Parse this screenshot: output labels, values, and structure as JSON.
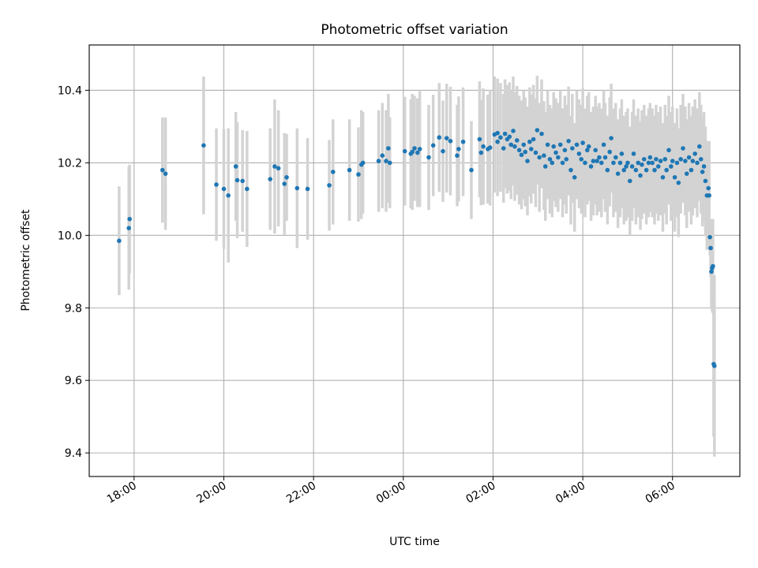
{
  "chart_data": {
    "type": "scatter",
    "title": "Photometric offset variation",
    "xlabel": "UTC time",
    "ylabel": "Photometric offset",
    "x_unit": "UTC time of night, 17:00 to 07:30 across midnight",
    "xlim": [
      "17:00",
      "07:30"
    ],
    "ylim": [
      9.335,
      10.525
    ],
    "x_ticks": [
      "18:00",
      "20:00",
      "22:00",
      "00:00",
      "02:00",
      "04:00",
      "06:00"
    ],
    "y_ticks": [
      "9.4",
      "9.6",
      "9.8",
      "10.0",
      "10.2",
      "10.4"
    ],
    "grid": true,
    "series": [
      {
        "errorbar_color": "#d3d3d3",
        "marker_color": "#1f77b4",
        "points": [
          {
            "t": "17:40",
            "y": 9.985,
            "err": 0.15
          },
          {
            "t": "17:53",
            "y": 10.02,
            "err": 0.17
          },
          {
            "t": "17:54",
            "y": 10.045,
            "err": 0.15
          },
          {
            "t": "18:38",
            "y": 10.18,
            "err": 0.145
          },
          {
            "t": "18:42",
            "y": 10.17,
            "err": 0.155
          },
          {
            "t": "19:33",
            "y": 10.248,
            "err": 0.19
          },
          {
            "t": "19:50",
            "y": 10.14,
            "err": 0.155
          },
          {
            "t": "20:00",
            "y": 10.128,
            "err": 0.165
          },
          {
            "t": "20:06",
            "y": 10.11,
            "err": 0.185
          },
          {
            "t": "20:16",
            "y": 10.19,
            "err": 0.15
          },
          {
            "t": "20:18",
            "y": 10.152,
            "err": 0.16
          },
          {
            "t": "20:25",
            "y": 10.15,
            "err": 0.14
          },
          {
            "t": "20:31",
            "y": 10.128,
            "err": 0.16
          },
          {
            "t": "21:02",
            "y": 10.155,
            "err": 0.14
          },
          {
            "t": "21:08",
            "y": 10.19,
            "err": 0.185
          },
          {
            "t": "21:13",
            "y": 10.185,
            "err": 0.16
          },
          {
            "t": "21:21",
            "y": 10.142,
            "err": 0.14
          },
          {
            "t": "21:24",
            "y": 10.16,
            "err": 0.12
          },
          {
            "t": "21:38",
            "y": 10.13,
            "err": 0.165
          },
          {
            "t": "21:52",
            "y": 10.128,
            "err": 0.14
          },
          {
            "t": "22:21",
            "y": 10.138,
            "err": 0.125
          },
          {
            "t": "22:26",
            "y": 10.175,
            "err": 0.145
          },
          {
            "t": "22:48",
            "y": 10.18,
            "err": 0.14
          },
          {
            "t": "23:00",
            "y": 10.168,
            "err": 0.13
          },
          {
            "t": "23:04",
            "y": 10.195,
            "err": 0.15
          },
          {
            "t": "23:06",
            "y": 10.2,
            "err": 0.14
          },
          {
            "t": "23:27",
            "y": 10.205,
            "err": 0.14
          },
          {
            "t": "23:32",
            "y": 10.22,
            "err": 0.145
          },
          {
            "t": "23:37",
            "y": 10.205,
            "err": 0.14
          },
          {
            "t": "23:40",
            "y": 10.24,
            "err": 0.15
          },
          {
            "t": "23:42",
            "y": 10.2,
            "err": 0.125
          },
          {
            "t": "00:02",
            "y": 10.232,
            "err": 0.15
          },
          {
            "t": "00:10",
            "y": 10.225,
            "err": 0.15
          },
          {
            "t": "00:12",
            "y": 10.23,
            "err": 0.16
          },
          {
            "t": "00:15",
            "y": 10.24,
            "err": 0.145
          },
          {
            "t": "00:19",
            "y": 10.228,
            "err": 0.15
          },
          {
            "t": "00:22",
            "y": 10.238,
            "err": 0.16
          },
          {
            "t": "00:34",
            "y": 10.215,
            "err": 0.145
          },
          {
            "t": "00:40",
            "y": 10.248,
            "err": 0.14
          },
          {
            "t": "00:48",
            "y": 10.27,
            "err": 0.15
          },
          {
            "t": "00:53",
            "y": 10.232,
            "err": 0.14
          },
          {
            "t": "00:58",
            "y": 10.268,
            "err": 0.15
          },
          {
            "t": "01:03",
            "y": 10.26,
            "err": 0.15
          },
          {
            "t": "01:12",
            "y": 10.22,
            "err": 0.14
          },
          {
            "t": "01:14",
            "y": 10.238,
            "err": 0.145
          },
          {
            "t": "01:20",
            "y": 10.258,
            "err": 0.15
          },
          {
            "t": "01:31",
            "y": 10.18,
            "err": 0.135
          },
          {
            "t": "01:42",
            "y": 10.265,
            "err": 0.16
          },
          {
            "t": "01:44",
            "y": 10.228,
            "err": 0.145
          },
          {
            "t": "01:47",
            "y": 10.245,
            "err": 0.16
          },
          {
            "t": "01:53",
            "y": 10.238,
            "err": 0.15
          },
          {
            "t": "01:56",
            "y": 10.242,
            "err": 0.16
          },
          {
            "t": "02:02",
            "y": 10.278,
            "err": 0.16
          },
          {
            "t": "02:06",
            "y": 10.258,
            "err": 0.15
          },
          {
            "t": "02:06",
            "y": 10.282,
            "err": 0.15
          },
          {
            "t": "02:10",
            "y": 10.27,
            "err": 0.15
          },
          {
            "t": "02:14",
            "y": 10.24,
            "err": 0.15
          },
          {
            "t": "02:16",
            "y": 10.28,
            "err": 0.15
          },
          {
            "t": "02:19",
            "y": 10.265,
            "err": 0.15
          },
          {
            "t": "02:22",
            "y": 10.272,
            "err": 0.15
          },
          {
            "t": "02:24",
            "y": 10.25,
            "err": 0.15
          },
          {
            "t": "02:27",
            "y": 10.288,
            "err": 0.15
          },
          {
            "t": "02:29",
            "y": 10.245,
            "err": 0.15
          },
          {
            "t": "02:32",
            "y": 10.262,
            "err": 0.15
          },
          {
            "t": "02:35",
            "y": 10.235,
            "err": 0.15
          },
          {
            "t": "02:38",
            "y": 10.222,
            "err": 0.15
          },
          {
            "t": "02:41",
            "y": 10.25,
            "err": 0.15
          },
          {
            "t": "02:43",
            "y": 10.23,
            "err": 0.15
          },
          {
            "t": "02:46",
            "y": 10.205,
            "err": 0.15
          },
          {
            "t": "02:49",
            "y": 10.258,
            "err": 0.15
          },
          {
            "t": "02:51",
            "y": 10.238,
            "err": 0.15
          },
          {
            "t": "02:54",
            "y": 10.265,
            "err": 0.15
          },
          {
            "t": "02:57",
            "y": 10.228,
            "err": 0.15
          },
          {
            "t": "02:59",
            "y": 10.29,
            "err": 0.15
          },
          {
            "t": "03:02",
            "y": 10.215,
            "err": 0.15
          },
          {
            "t": "03:05",
            "y": 10.28,
            "err": 0.15
          },
          {
            "t": "03:08",
            "y": 10.22,
            "err": 0.15
          },
          {
            "t": "03:10",
            "y": 10.19,
            "err": 0.15
          },
          {
            "t": "03:13",
            "y": 10.25,
            "err": 0.15
          },
          {
            "t": "03:16",
            "y": 10.21,
            "err": 0.15
          },
          {
            "t": "03:19",
            "y": 10.2,
            "err": 0.15
          },
          {
            "t": "03:21",
            "y": 10.245,
            "err": 0.15
          },
          {
            "t": "03:24",
            "y": 10.228,
            "err": 0.15
          },
          {
            "t": "03:27",
            "y": 10.215,
            "err": 0.15
          },
          {
            "t": "03:30",
            "y": 10.25,
            "err": 0.15
          },
          {
            "t": "03:33",
            "y": 10.2,
            "err": 0.15
          },
          {
            "t": "03:36",
            "y": 10.235,
            "err": 0.15
          },
          {
            "t": "03:38",
            "y": 10.21,
            "err": 0.15
          },
          {
            "t": "03:41",
            "y": 10.26,
            "err": 0.15
          },
          {
            "t": "03:44",
            "y": 10.18,
            "err": 0.15
          },
          {
            "t": "03:46",
            "y": 10.24,
            "err": 0.15
          },
          {
            "t": "03:49",
            "y": 10.16,
            "err": 0.15
          },
          {
            "t": "03:52",
            "y": 10.25,
            "err": 0.15
          },
          {
            "t": "03:55",
            "y": 10.225,
            "err": 0.15
          },
          {
            "t": "03:58",
            "y": 10.21,
            "err": 0.15
          },
          {
            "t": "04:00",
            "y": 10.255,
            "err": 0.15
          },
          {
            "t": "04:03",
            "y": 10.2,
            "err": 0.15
          },
          {
            "t": "04:06",
            "y": 10.235,
            "err": 0.15
          },
          {
            "t": "04:08",
            "y": 10.245,
            "err": 0.15
          },
          {
            "t": "04:11",
            "y": 10.19,
            "err": 0.15
          },
          {
            "t": "04:14",
            "y": 10.205,
            "err": 0.15
          },
          {
            "t": "04:17",
            "y": 10.235,
            "err": 0.15
          },
          {
            "t": "04:19",
            "y": 10.205,
            "err": 0.15
          },
          {
            "t": "04:22",
            "y": 10.215,
            "err": 0.15
          },
          {
            "t": "04:25",
            "y": 10.2,
            "err": 0.15
          },
          {
            "t": "04:28",
            "y": 10.25,
            "err": 0.15
          },
          {
            "t": "04:30",
            "y": 10.215,
            "err": 0.15
          },
          {
            "t": "04:33",
            "y": 10.18,
            "err": 0.15
          },
          {
            "t": "04:36",
            "y": 10.23,
            "err": 0.15
          },
          {
            "t": "04:38",
            "y": 10.268,
            "err": 0.15
          },
          {
            "t": "04:41",
            "y": 10.2,
            "err": 0.15
          },
          {
            "t": "04:44",
            "y": 10.215,
            "err": 0.15
          },
          {
            "t": "04:47",
            "y": 10.17,
            "err": 0.15
          },
          {
            "t": "04:50",
            "y": 10.2,
            "err": 0.15
          },
          {
            "t": "04:52",
            "y": 10.225,
            "err": 0.15
          },
          {
            "t": "04:55",
            "y": 10.18,
            "err": 0.15
          },
          {
            "t": "04:58",
            "y": 10.19,
            "err": 0.15
          },
          {
            "t": "05:00",
            "y": 10.2,
            "err": 0.15
          },
          {
            "t": "05:03",
            "y": 10.15,
            "err": 0.15
          },
          {
            "t": "05:06",
            "y": 10.19,
            "err": 0.15
          },
          {
            "t": "05:08",
            "y": 10.225,
            "err": 0.15
          },
          {
            "t": "05:11",
            "y": 10.18,
            "err": 0.15
          },
          {
            "t": "05:14",
            "y": 10.2,
            "err": 0.15
          },
          {
            "t": "05:17",
            "y": 10.165,
            "err": 0.15
          },
          {
            "t": "05:19",
            "y": 10.195,
            "err": 0.15
          },
          {
            "t": "05:22",
            "y": 10.21,
            "err": 0.15
          },
          {
            "t": "05:25",
            "y": 10.18,
            "err": 0.15
          },
          {
            "t": "05:28",
            "y": 10.2,
            "err": 0.15
          },
          {
            "t": "05:30",
            "y": 10.215,
            "err": 0.15
          },
          {
            "t": "05:33",
            "y": 10.2,
            "err": 0.15
          },
          {
            "t": "05:36",
            "y": 10.18,
            "err": 0.15
          },
          {
            "t": "05:38",
            "y": 10.21,
            "err": 0.15
          },
          {
            "t": "05:41",
            "y": 10.19,
            "err": 0.15
          },
          {
            "t": "05:44",
            "y": 10.205,
            "err": 0.15
          },
          {
            "t": "05:47",
            "y": 10.16,
            "err": 0.15
          },
          {
            "t": "05:50",
            "y": 10.21,
            "err": 0.15
          },
          {
            "t": "05:52",
            "y": 10.18,
            "err": 0.15
          },
          {
            "t": "05:55",
            "y": 10.235,
            "err": 0.15
          },
          {
            "t": "05:58",
            "y": 10.19,
            "err": 0.15
          },
          {
            "t": "06:00",
            "y": 10.205,
            "err": 0.15
          },
          {
            "t": "06:03",
            "y": 10.16,
            "err": 0.15
          },
          {
            "t": "06:06",
            "y": 10.2,
            "err": 0.15
          },
          {
            "t": "06:08",
            "y": 10.145,
            "err": 0.15
          },
          {
            "t": "06:11",
            "y": 10.21,
            "err": 0.15
          },
          {
            "t": "06:14",
            "y": 10.24,
            "err": 0.15
          },
          {
            "t": "06:17",
            "y": 10.205,
            "err": 0.15
          },
          {
            "t": "06:19",
            "y": 10.17,
            "err": 0.15
          },
          {
            "t": "06:22",
            "y": 10.215,
            "err": 0.15
          },
          {
            "t": "06:25",
            "y": 10.18,
            "err": 0.15
          },
          {
            "t": "06:27",
            "y": 10.205,
            "err": 0.15
          },
          {
            "t": "06:30",
            "y": 10.225,
            "err": 0.15
          },
          {
            "t": "06:33",
            "y": 10.2,
            "err": 0.15
          },
          {
            "t": "06:36",
            "y": 10.245,
            "err": 0.15
          },
          {
            "t": "06:38",
            "y": 10.21,
            "err": 0.15
          },
          {
            "t": "06:40",
            "y": 10.175,
            "err": 0.15
          },
          {
            "t": "06:42",
            "y": 10.19,
            "err": 0.15
          },
          {
            "t": "06:44",
            "y": 10.15,
            "err": 0.15
          },
          {
            "t": "06:46",
            "y": 10.11,
            "err": 0.15
          },
          {
            "t": "06:48",
            "y": 10.13,
            "err": 0.12
          },
          {
            "t": "06:49",
            "y": 10.11,
            "err": 0.15
          },
          {
            "t": "06:50",
            "y": 9.995,
            "err": 0.05
          },
          {
            "t": "06:51",
            "y": 9.965,
            "err": 0.08
          },
          {
            "t": "06:52",
            "y": 9.9,
            "err": 0.1
          },
          {
            "t": "06:53",
            "y": 9.91,
            "err": 0.12
          },
          {
            "t": "06:54",
            "y": 9.915,
            "err": 0.13
          },
          {
            "t": "06:55",
            "y": 9.645,
            "err": 0.2
          },
          {
            "t": "06:56",
            "y": 9.64,
            "err": 0.25
          }
        ]
      }
    ]
  }
}
